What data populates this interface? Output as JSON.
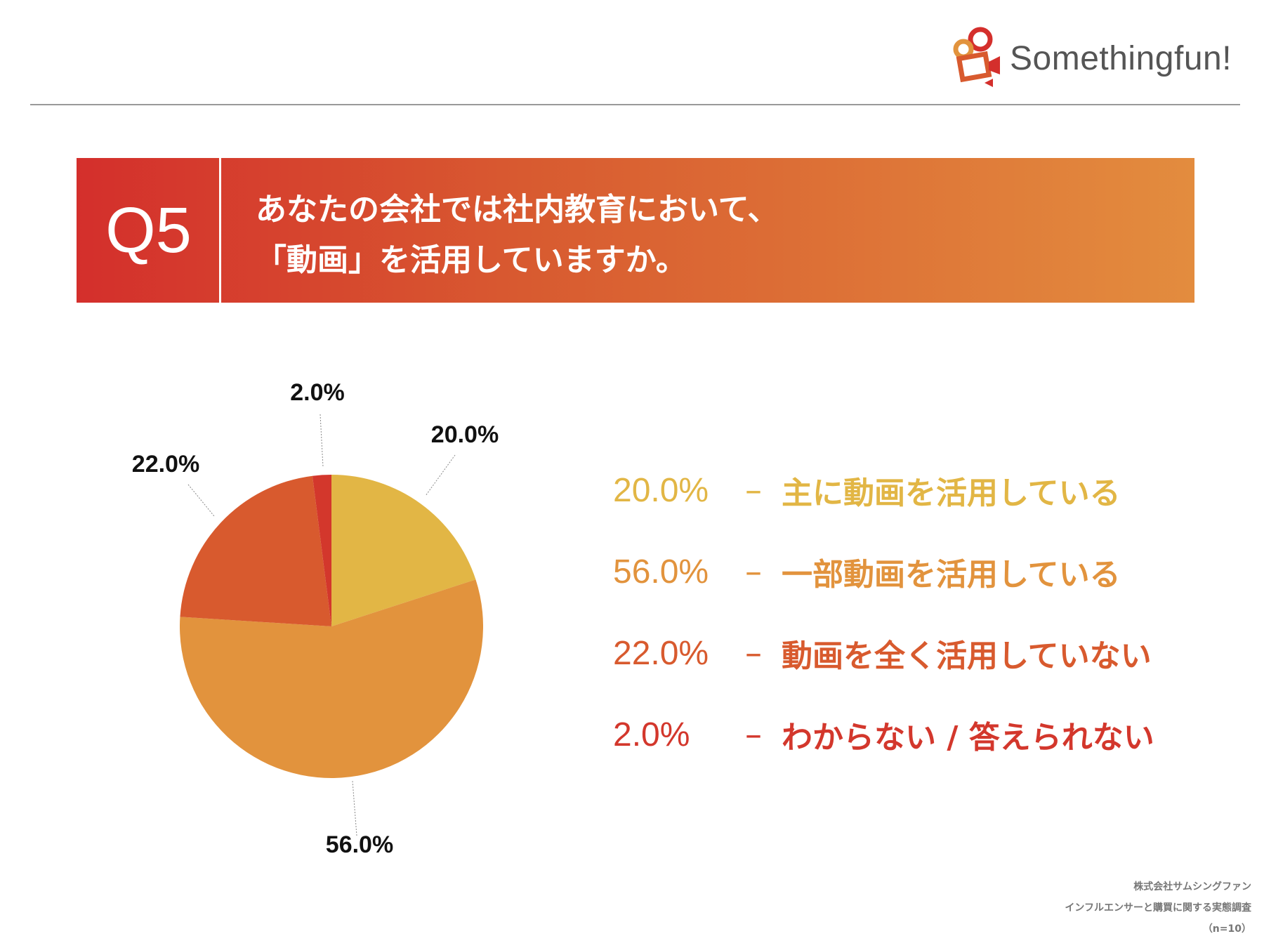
{
  "header": {
    "logo_text": "Somethingfun!",
    "logo_icon": "film-camera-icon"
  },
  "question": {
    "number": "Q5",
    "line1": "あなたの会社では社内教育において、",
    "line2": "「動画」を活用していますか。"
  },
  "chart_data": {
    "type": "pie",
    "categories": [
      "主に動画を活用している",
      "一部動画を活用している",
      "動画を全く活用していない",
      "わからない / 答えられない"
    ],
    "values": [
      20.0,
      56.0,
      22.0,
      2.0
    ],
    "data_labels": [
      "20.0%",
      "56.0%",
      "22.0%",
      "2.0%"
    ],
    "colors": [
      "#e2b645",
      "#e2933d",
      "#d85a2e",
      "#d3372c"
    ],
    "start_angle_deg": 0,
    "direction": "clockwise"
  },
  "legend": [
    {
      "pct": "20.0%",
      "dash": "–",
      "label": "主に動画を活用している",
      "color": "#e2b645"
    },
    {
      "pct": "56.0%",
      "dash": "–",
      "label": "一部動画を活用している",
      "color": "#e2933d"
    },
    {
      "pct": "22.0%",
      "dash": "–",
      "label": "動画を全く活用していない",
      "color": "#d85a2e"
    },
    {
      "pct": "2.0%",
      "dash": "–",
      "label": "わからない / 答えられない",
      "color": "#d3372c"
    }
  ],
  "footer": {
    "company": "株式会社サムシングファン",
    "survey": "インフルエンサーと購買に関する実態調査",
    "sample": "（n=10）"
  }
}
